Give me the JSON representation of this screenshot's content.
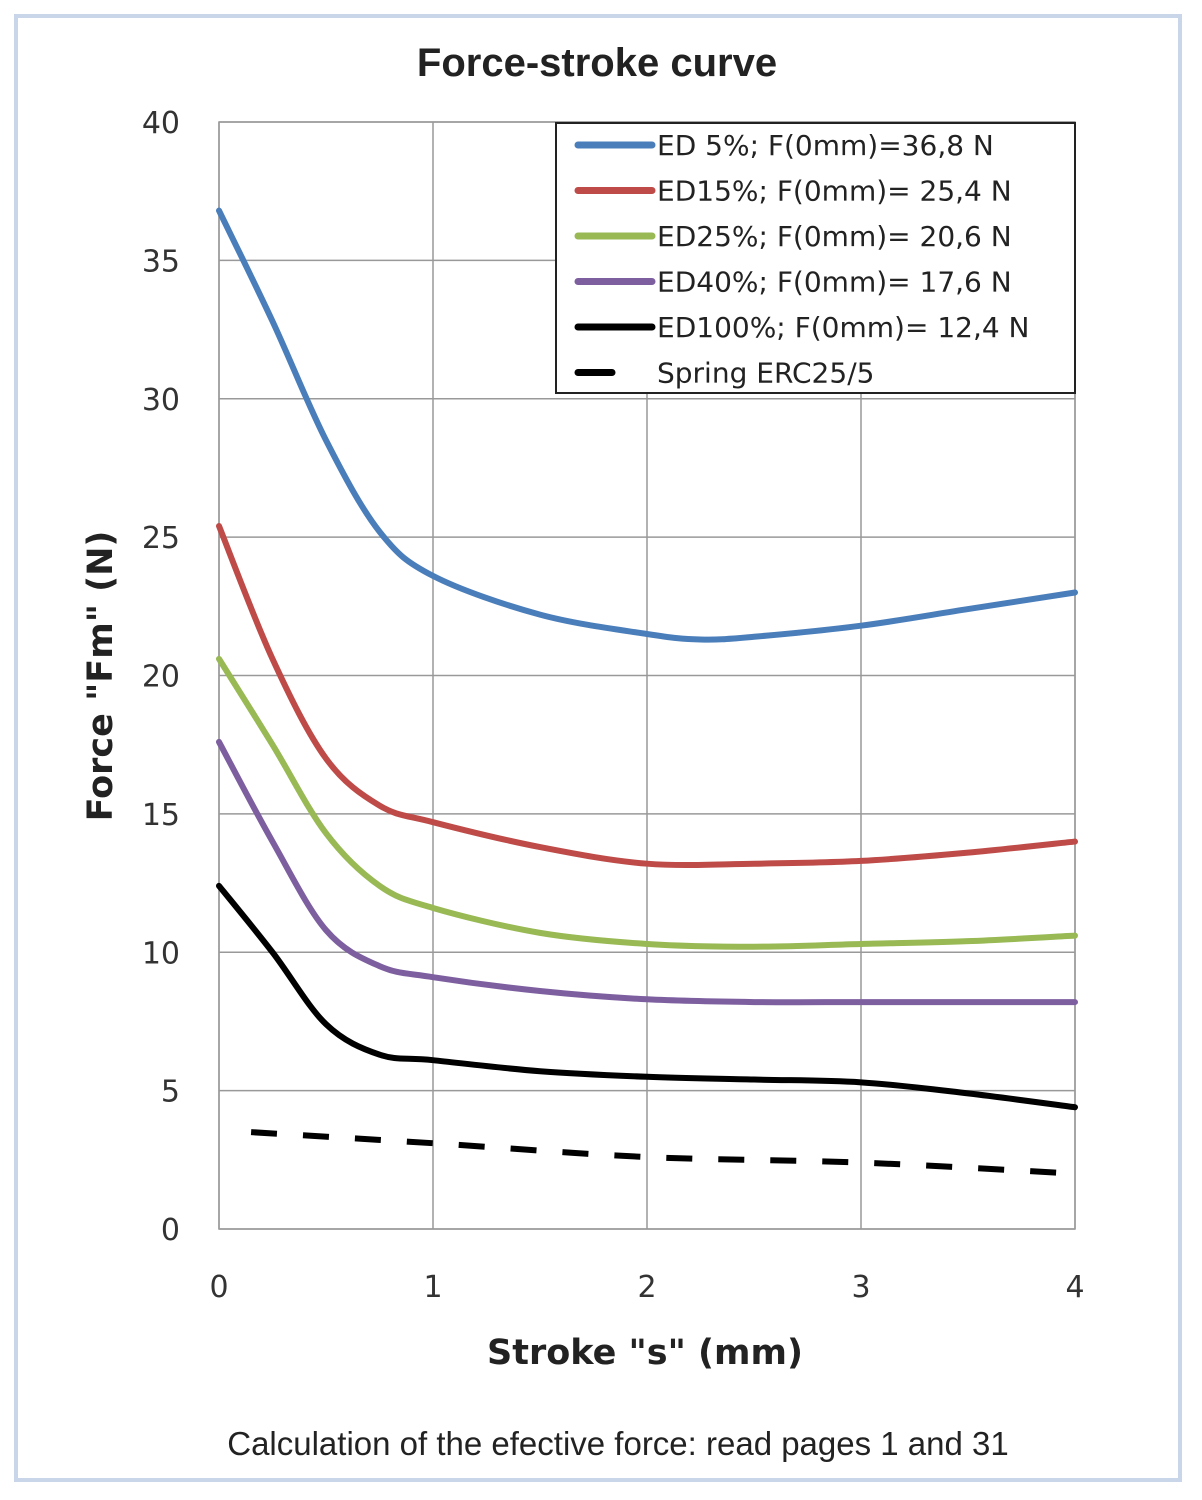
{
  "chart_data": {
    "type": "line",
    "title": "Force-stroke curve",
    "xlabel": "Stroke \"s\" (mm)",
    "ylabel": "Force  \"Fm\" (N)",
    "xlim": [
      0,
      4
    ],
    "ylim": [
      0,
      40
    ],
    "xticks": [
      "0",
      "1",
      "2",
      "3",
      "4"
    ],
    "yticks": [
      "0",
      "5",
      "10",
      "15",
      "20",
      "25",
      "30",
      "35",
      "40"
    ],
    "grid": true,
    "legend_position": "top-right",
    "footnote": "Calculation of the efective force: read pages 1 and 31",
    "series": [
      {
        "name": "ED 5%; F(0mm)=36,8 N",
        "color": "#4a7ebb",
        "dash": false,
        "x": [
          0,
          0.25,
          0.5,
          0.75,
          1,
          1.5,
          2,
          2.25,
          2.5,
          3,
          3.5,
          4
        ],
        "y": [
          36.8,
          32.8,
          28.5,
          25.2,
          23.6,
          22.2,
          21.5,
          21.3,
          21.4,
          21.8,
          22.4,
          23.0
        ]
      },
      {
        "name": "ED15%; F(0mm)= 25,4 N",
        "color": "#be4b48",
        "dash": false,
        "x": [
          0,
          0.25,
          0.5,
          0.75,
          1,
          1.5,
          2,
          2.5,
          3,
          3.5,
          4
        ],
        "y": [
          25.4,
          20.6,
          17.0,
          15.3,
          14.7,
          13.8,
          13.2,
          13.2,
          13.3,
          13.6,
          14.0
        ]
      },
      {
        "name": "ED25%; F(0mm)= 20,6 N",
        "color": "#98b954",
        "dash": false,
        "x": [
          0,
          0.25,
          0.5,
          0.75,
          1,
          1.5,
          2,
          2.5,
          3,
          3.5,
          4
        ],
        "y": [
          20.6,
          17.5,
          14.3,
          12.4,
          11.6,
          10.7,
          10.3,
          10.2,
          10.3,
          10.4,
          10.6
        ]
      },
      {
        "name": "ED40%; F(0mm)= 17,6 N",
        "color": "#7d5fa0",
        "dash": false,
        "x": [
          0,
          0.25,
          0.5,
          0.75,
          1,
          1.5,
          2,
          2.5,
          3,
          3.5,
          4
        ],
        "y": [
          17.6,
          14.0,
          10.8,
          9.5,
          9.1,
          8.6,
          8.3,
          8.2,
          8.2,
          8.2,
          8.2
        ]
      },
      {
        "name": "ED100%; F(0mm)= 12,4 N",
        "color": "#000000",
        "dash": false,
        "x": [
          0,
          0.25,
          0.5,
          0.75,
          1,
          1.5,
          2,
          2.5,
          3,
          3.5,
          4
        ],
        "y": [
          12.4,
          10.0,
          7.4,
          6.3,
          6.1,
          5.7,
          5.5,
          5.4,
          5.3,
          4.9,
          4.4
        ]
      },
      {
        "name": "Spring ERC25/5",
        "color": "#000000",
        "dash": true,
        "x": [
          0.15,
          1,
          2,
          3,
          4
        ],
        "y": [
          3.5,
          3.1,
          2.6,
          2.4,
          2.0
        ]
      }
    ]
  }
}
